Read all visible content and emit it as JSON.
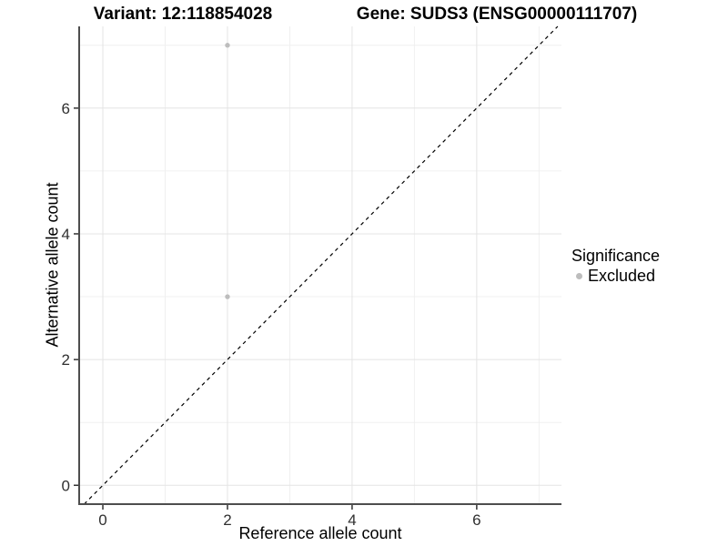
{
  "header": {
    "title_left": "Variant: 12:118854028",
    "title_right": "Gene: SUDS3 (ENSG00000111707)"
  },
  "legend": {
    "title": "Significance",
    "items": [
      {
        "label": "Excluded",
        "color": "#bdbdbd"
      }
    ]
  },
  "colors": {
    "background": "#ffffff",
    "axis_line": "#4d4d4d",
    "tick_mark": "#333333",
    "tick_label": "#303030",
    "grid_major": "#e4e4e4",
    "grid_minor": "#f0f0f0",
    "point": "#bdbdbd",
    "reference_line": "#000000"
  },
  "chart_data": {
    "type": "scatter",
    "title_left": "Variant: 12:118854028",
    "title_right": "Gene: SUDS3 (ENSG00000111707)",
    "xlabel": "Reference allele count",
    "ylabel": "Alternative allele count",
    "xlim": [
      -0.38,
      7.36
    ],
    "ylim": [
      -0.3,
      7.3
    ],
    "x_ticks": [
      0,
      2,
      4,
      6
    ],
    "y_ticks": [
      0,
      2,
      4,
      6
    ],
    "grid_major_values": [
      0,
      2,
      4,
      6
    ],
    "grid_minor_values": [
      1,
      3,
      5,
      7
    ],
    "grid": "on",
    "legend_position": "right",
    "series": [
      {
        "name": "Excluded",
        "color": "#bdbdbd",
        "points": [
          {
            "x": 2,
            "y": 7
          },
          {
            "x": 2,
            "y": 3
          }
        ]
      }
    ],
    "reference_line": {
      "kind": "identity y=x",
      "style": "dashed",
      "color": "#000000"
    }
  }
}
